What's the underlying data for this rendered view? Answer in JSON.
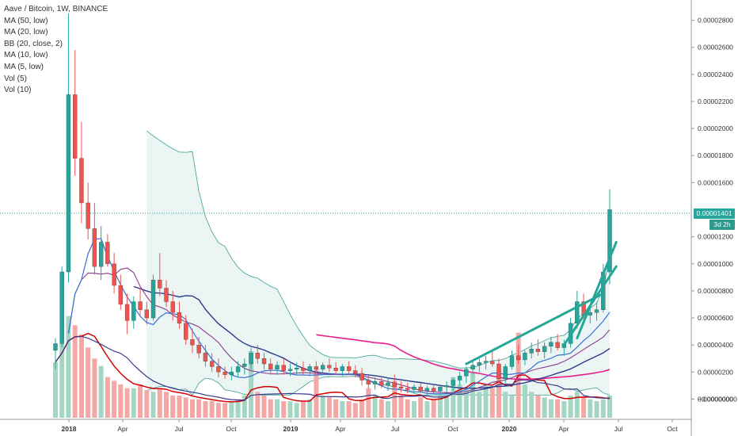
{
  "header": {
    "title": "Aave / Bitcoin, 1W, BINANCE"
  },
  "legend": {
    "items": [
      "MA (50, low)",
      "MA (20, low)",
      "BB (20, close, 2)",
      "MA (10, low)",
      "MA (5, low)",
      "Vol (5)",
      "Vol (10)"
    ]
  },
  "price_axis": {
    "ticks": [
      "0.00002800",
      "0.00002600",
      "0.00002400",
      "0.00002200",
      "0.00002000",
      "0.00001800",
      "0.00001600",
      "0.00001200",
      "0.00001000",
      "0.00000800",
      "0.00000600",
      "0.00000400",
      "0.00000200",
      "0.00000000",
      "−0.00000000"
    ],
    "current_price": "0.00001401",
    "countdown": "3d 2h"
  },
  "time_axis": {
    "ticks": [
      "2018",
      "Apr",
      "Jul",
      "Oct",
      "2019",
      "Apr",
      "Jul",
      "Oct",
      "2020",
      "Apr",
      "Jul",
      "Oct"
    ]
  },
  "colors": {
    "up": "#26a69a",
    "down": "#ef5350",
    "bb_fill": "#e6f4f1",
    "bb_line": "#4fa89a",
    "ma50": "#e91e8c",
    "ma20": "#2a3a8c",
    "ma10": "#8e3b8c",
    "ma5": "#3b6fd6",
    "vol5": "#d50000",
    "vol10": "#3a3a8c",
    "trend": "#26a69a"
  },
  "chart_data": {
    "type": "candlestick",
    "title": "Aave / Bitcoin, 1W, BINANCE",
    "ylim": [
      -1.5e-06,
      2.95e-05
    ],
    "current_price": 1.401e-05,
    "series_names": [
      "MA (50, low)",
      "MA (20, low)",
      "BB (20, close, 2)",
      "MA (10, low)",
      "MA (5, low)",
      "Vol (5)",
      "Vol (10)"
    ],
    "candles": [
      [
        3.6e-06,
        4.5e-06,
        2.2e-06,
        4.1e-06
      ],
      [
        4.1e-06,
        9.8e-06,
        3.8e-06,
        9.4e-06
      ],
      [
        9.4e-06,
        2.85e-05,
        8.6e-06,
        2.25e-05
      ],
      [
        2.25e-05,
        2.58e-05,
        1.65e-05,
        1.78e-05
      ],
      [
        1.78e-05,
        2.05e-05,
        1.3e-05,
        1.45e-05
      ],
      [
        1.45e-05,
        1.6e-05,
        1.18e-05,
        1.26e-05
      ],
      [
        1.26e-05,
        1.45e-05,
        9.2e-06,
        9.8e-06
      ],
      [
        9.8e-06,
        1.28e-05,
        8.8e-06,
        1.16e-05
      ],
      [
        1.16e-05,
        1.22e-05,
        9.8e-06,
        1e-05
      ],
      [
        1e-05,
        1.08e-05,
        7.8e-06,
        8.4e-06
      ],
      [
        8.4e-06,
        9.2e-06,
        6.6e-06,
        7e-06
      ],
      [
        7e-06,
        7.8e-06,
        4.8e-06,
        5.8e-06
      ],
      [
        5.8e-06,
        7.6e-06,
        5.2e-06,
        7.2e-06
      ],
      [
        7.2e-06,
        8.2e-06,
        6.2e-06,
        6.6e-06
      ],
      [
        6.6e-06,
        7.2e-06,
        5.5e-06,
        6e-06
      ],
      [
        6e-06,
        9.2e-06,
        5.8e-06,
        8.8e-06
      ],
      [
        8.8e-06,
        1.08e-05,
        7.6e-06,
        8.2e-06
      ],
      [
        8.2e-06,
        8.8e-06,
        6.8e-06,
        7.2e-06
      ],
      [
        7.2e-06,
        8e-06,
        5.8e-06,
        6.4e-06
      ],
      [
        6.4e-06,
        7.2e-06,
        5.2e-06,
        5.6e-06
      ],
      [
        5.6e-06,
        6.2e-06,
        4e-06,
        4.4e-06
      ],
      [
        4.4e-06,
        5.2e-06,
        3.4e-06,
        4e-06
      ],
      [
        4e-06,
        4.6e-06,
        3e-06,
        3.4e-06
      ],
      [
        3.4e-06,
        4e-06,
        2.4e-06,
        2.8e-06
      ],
      [
        2.8e-06,
        3.4e-06,
        2e-06,
        2.4e-06
      ],
      [
        2.4e-06,
        3e-06,
        1.6e-06,
        2e-06
      ],
      [
        2e-06,
        2.4e-06,
        1.5e-06,
        1.8e-06
      ],
      [
        1.8e-06,
        2.4e-06,
        1.4e-06,
        2e-06
      ],
      [
        2e-06,
        2.8e-06,
        1.6e-06,
        2.4e-06
      ],
      [
        2.4e-06,
        3e-06,
        1.8e-06,
        2.6e-06
      ],
      [
        2.6e-06,
        3.8e-06,
        2.2e-06,
        3.4e-06
      ],
      [
        3.4e-06,
        4e-06,
        2.6e-06,
        3e-06
      ],
      [
        3e-06,
        3.4e-06,
        2.2e-06,
        2.6e-06
      ],
      [
        2.6e-06,
        3e-06,
        1.8e-06,
        2.2e-06
      ],
      [
        2.2e-06,
        2.8e-06,
        1.8e-06,
        2.5e-06
      ],
      [
        2.5e-06,
        3e-06,
        1.8e-06,
        2.1e-06
      ],
      [
        2.1e-06,
        2.6e-06,
        1.7e-06,
        2.2e-06
      ],
      [
        2.2e-06,
        2.7e-06,
        1.8e-06,
        2.3e-06
      ],
      [
        2.3e-06,
        2.8e-06,
        1.8e-06,
        2.1e-06
      ],
      [
        2.1e-06,
        2.6e-06,
        1.7e-06,
        2.4e-06
      ],
      [
        2.4e-06,
        2.8e-06,
        1.9e-06,
        2.2e-06
      ],
      [
        2.2e-06,
        2.7e-06,
        1.8e-06,
        2.5e-06
      ],
      [
        2.5e-06,
        3e-06,
        2e-06,
        2.3e-06
      ],
      [
        2.3e-06,
        2.7e-06,
        1.8e-06,
        2.1e-06
      ],
      [
        2.1e-06,
        2.6e-06,
        1.7e-06,
        2.4e-06
      ],
      [
        2.4e-06,
        2.8e-06,
        1.9e-06,
        2.1e-06
      ],
      [
        2.1e-06,
        2.5e-06,
        1.6e-06,
        1.9e-06
      ],
      [
        1.9e-06,
        2.3e-06,
        1e-06,
        1.4e-06
      ],
      [
        1.4e-06,
        1.8e-06,
        8e-07,
        1.1e-06
      ],
      [
        1.1e-06,
        1.6e-06,
        7e-07,
        1.3e-06
      ],
      [
        1.3e-06,
        1.7e-06,
        8e-07,
        1e-06
      ],
      [
        1e-06,
        1.5e-06,
        6e-07,
        1.2e-06
      ],
      [
        1.2e-06,
        1.8e-06,
        8e-07,
        9e-07
      ],
      [
        9e-07,
        1.3e-06,
        5e-07,
        8e-07
      ],
      [
        8e-07,
        1.2e-06,
        4e-07,
        7e-07
      ],
      [
        7e-07,
        1.1e-06,
        4e-07,
        9e-07
      ],
      [
        9e-07,
        1.2e-06,
        5e-07,
        6e-07
      ],
      [
        6e-07,
        1e-06,
        3e-07,
        8e-07
      ],
      [
        8e-07,
        1.1e-06,
        4e-07,
        6e-07
      ],
      [
        6e-07,
        1e-06,
        3e-07,
        9e-07
      ],
      [
        9e-07,
        1.3e-06,
        5e-07,
        1e-06
      ],
      [
        1e-06,
        1.6e-06,
        6e-07,
        1.4e-06
      ],
      [
        1.4e-06,
        2e-06,
        1e-06,
        1.7e-06
      ],
      [
        1.7e-06,
        2.4e-06,
        1.2e-06,
        2.2e-06
      ],
      [
        2.2e-06,
        2.8e-06,
        1.8e-06,
        2.5e-06
      ],
      [
        2.5e-06,
        3e-06,
        2e-06,
        2.7e-06
      ],
      [
        2.7e-06,
        3.2e-06,
        2.2e-06,
        2.8e-06
      ],
      [
        2.8e-06,
        3.6e-06,
        2.4e-06,
        2.6e-06
      ],
      [
        2.6e-06,
        3e-06,
        1.2e-06,
        1.5e-06
      ],
      [
        1.5e-06,
        2.6e-06,
        1.2e-06,
        2.4e-06
      ],
      [
        2.4e-06,
        3.6e-06,
        2.2e-06,
        3.2e-06
      ],
      [
        3.2e-06,
        4e-06,
        2.6e-06,
        2.9e-06
      ],
      [
        2.9e-06,
        3.6e-06,
        2.5e-06,
        3.4e-06
      ],
      [
        3.4e-06,
        4.2e-06,
        3e-06,
        3.7e-06
      ],
      [
        3.7e-06,
        4.4e-06,
        3.2e-06,
        3.5e-06
      ],
      [
        3.5e-06,
        4.2e-06,
        3e-06,
        3.9e-06
      ],
      [
        3.9e-06,
        4.6e-06,
        3.4e-06,
        4.2e-06
      ],
      [
        4.2e-06,
        4.8e-06,
        3.6e-06,
        3.8e-06
      ],
      [
        3.8e-06,
        4.4e-06,
        3.2e-06,
        4.1e-06
      ],
      [
        4.1e-06,
        6e-06,
        3.8e-06,
        5.6e-06
      ],
      [
        5.6e-06,
        8e-06,
        5.2e-06,
        7.2e-06
      ],
      [
        7.2e-06,
        7.8e-06,
        5.8e-06,
        6.2e-06
      ],
      [
        6.2e-06,
        6.8e-06,
        5.6e-06,
        6.4e-06
      ],
      [
        6.4e-06,
        7.2e-06,
        5.8e-06,
        6.6e-06
      ],
      [
        6.6e-06,
        1e-05,
        6.4e-06,
        9.4e-06
      ],
      [
        9.4e-06,
        1.55e-05,
        8.5e-06,
        1.4e-05
      ]
    ],
    "volume": [
      30,
      40,
      55,
      50,
      45,
      38,
      32,
      28,
      22,
      20,
      18,
      16,
      16,
      18,
      15,
      14,
      16,
      14,
      12,
      12,
      11,
      10,
      10,
      9,
      9,
      8,
      8,
      9,
      10,
      12,
      36,
      14,
      12,
      10,
      10,
      9,
      9,
      8,
      9,
      10,
      26,
      12,
      11,
      10,
      9,
      9,
      8,
      10,
      16,
      12,
      10,
      9,
      20,
      12,
      10,
      9,
      11,
      9,
      10,
      12,
      14,
      22,
      18,
      16,
      24,
      14,
      18,
      16,
      26,
      14,
      12,
      46,
      18,
      14,
      12,
      11,
      10,
      10,
      9,
      12,
      14,
      11,
      10,
      9,
      10,
      12
    ],
    "volume_max": 60,
    "trendlines": [
      {
        "from": [
          63,
          2.6e-06
        ],
        "to": [
          84,
          7.8e-06
        ]
      },
      {
        "from": [
          78,
          4e-06
        ],
        "to": [
          86,
          9.8e-06
        ]
      },
      {
        "from": [
          80,
          4.5e-06
        ],
        "to": [
          86,
          1.16e-05
        ]
      }
    ]
  }
}
